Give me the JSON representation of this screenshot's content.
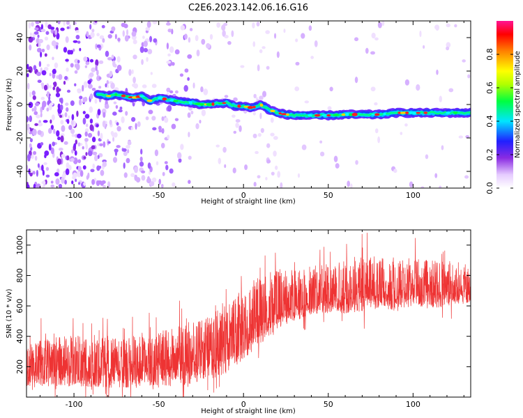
{
  "figure": {
    "title": "C2E6.2023.142.06.16.G16"
  },
  "chart_data": [
    {
      "type": "heatmap",
      "name": "spectrogram",
      "title": "",
      "xlabel": "Height of straight line (km)",
      "ylabel": "Frequency (Hz)",
      "xlim": [
        -128,
        134
      ],
      "ylim": [
        -50,
        50
      ],
      "xticks": [
        -100,
        -50,
        0,
        50,
        100
      ],
      "yticks": [
        -40,
        -20,
        0,
        20,
        40
      ],
      "colorbar": {
        "label": "Normalized spectral amplitude",
        "range": [
          0,
          1
        ],
        "ticks": [
          "0.0",
          "0.2",
          "0.4",
          "0.6",
          "0.8"
        ],
        "tick_values": [
          0,
          0.2,
          0.4,
          0.6,
          0.8
        ],
        "colormap": "rainbow (white → purple → blue → cyan → green → yellow → red → magenta)"
      },
      "ridge": {
        "x": [
          -86,
          -80,
          -75,
          -70,
          -65,
          -60,
          -55,
          -50,
          -45,
          -40,
          -35,
          -30,
          -25,
          -20,
          -15,
          -10,
          -5,
          0,
          5,
          10,
          15,
          20,
          25,
          30,
          40,
          50,
          60,
          70,
          80,
          90,
          100,
          110,
          120,
          134
        ],
        "y": [
          6,
          5,
          6,
          5,
          4,
          5,
          2,
          4,
          3,
          2,
          1.5,
          1,
          0,
          0,
          0.5,
          1,
          -1,
          -1,
          -2,
          0,
          -3,
          -5,
          -6,
          -6.5,
          -6.5,
          -6.5,
          -6,
          -6,
          -6,
          -5,
          -5,
          -5,
          -5,
          -5
        ]
      },
      "noise_note": "scattered speckle energy dense for x < -85, sparse for x > -30"
    },
    {
      "type": "line",
      "name": "snr",
      "title": "",
      "xlabel": "Height of straight line (km)",
      "ylabel": "SNR (10 * v/v)",
      "xlim": [
        -128,
        134
      ],
      "ylim": [
        0,
        1100
      ],
      "xticks": [
        -100,
        -50,
        0,
        50,
        100
      ],
      "yticks": [
        200,
        400,
        600,
        800,
        1000
      ],
      "color": "#ee3333",
      "envelope": {
        "x": [
          -128,
          -100,
          -75,
          -50,
          -35,
          -25,
          -10,
          0,
          10,
          20,
          30,
          40,
          50,
          60,
          70,
          80,
          90,
          100,
          110,
          120,
          134
        ],
        "low": [
          60,
          70,
          60,
          60,
          80,
          100,
          150,
          250,
          350,
          450,
          500,
          540,
          550,
          550,
          560,
          580,
          560,
          600,
          580,
          600,
          620
        ],
        "mid": [
          180,
          200,
          190,
          200,
          230,
          280,
          350,
          430,
          500,
          560,
          600,
          620,
          640,
          660,
          680,
          680,
          680,
          700,
          690,
          700,
          700
        ],
        "high": [
          350,
          420,
          400,
          420,
          500,
          520,
          600,
          720,
          800,
          850,
          850,
          860,
          880,
          900,
          950,
          920,
          900,
          920,
          900,
          900,
          880
        ]
      }
    }
  ]
}
